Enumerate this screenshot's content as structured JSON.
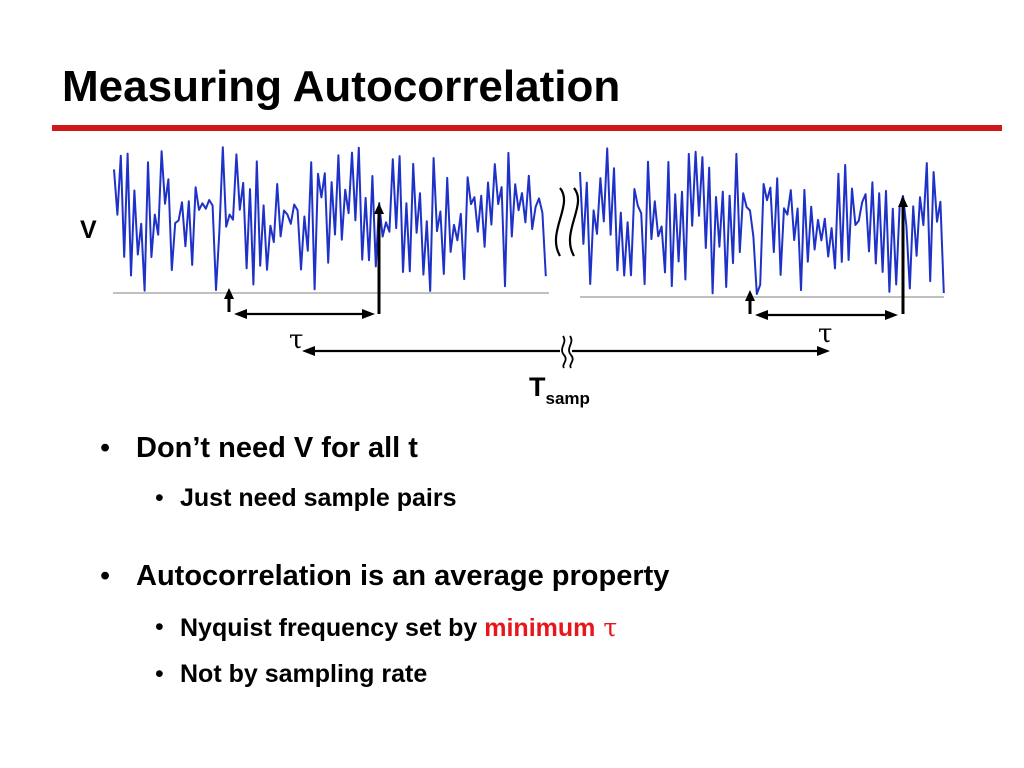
{
  "slide": {
    "title": "Measuring Autocorrelation"
  },
  "figure": {
    "v_label": "V",
    "tau_left": "τ",
    "tau_right": "τ",
    "t_main": "T",
    "t_sub": "samp",
    "signal_color": "#1f32c8",
    "break_symbol": "≈"
  },
  "bullets": {
    "marker": "•",
    "item1": "Don’t need V for all t",
    "item1_sub1": "Just need sample pairs",
    "item2": "Autocorrelation is an average property",
    "item2_sub1_prefix": "Nyquist frequency set by ",
    "item2_sub1_highlight": "minimum",
    "item2_sub1_tau": "τ",
    "item2_sub2": "Not by sampling rate",
    "highlight_color": "#e8161b"
  },
  "colors": {
    "title_rule": "#d0171c"
  }
}
